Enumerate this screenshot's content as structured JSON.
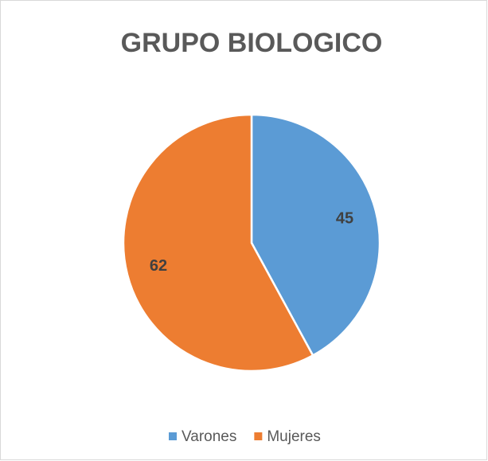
{
  "chart_data": {
    "type": "pie",
    "title": "GRUPO BIOLOGICO",
    "categories": [
      "Varones",
      "Mujeres"
    ],
    "values": [
      45,
      62
    ],
    "colors": [
      "#5b9bd5",
      "#ed7d31"
    ],
    "legend": "bottom",
    "data_labels": true
  }
}
